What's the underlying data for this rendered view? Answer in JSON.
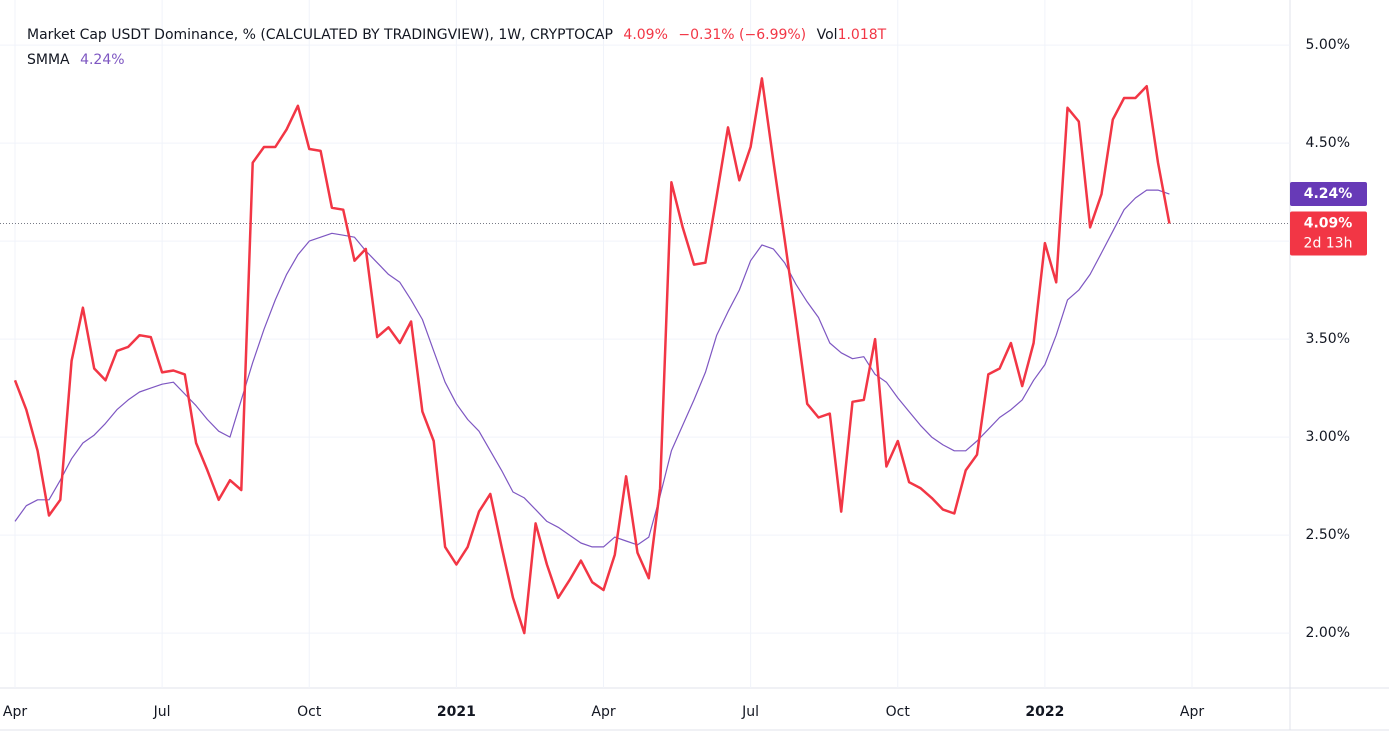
{
  "chart_data": {
    "type": "line",
    "title": "Market Cap USDT Dominance, % (CALCULATED BY TRADINGVIEW), 1W, CRYPTOCAP",
    "change": "−0.31% (−6.99%)",
    "volume_label": "Vol",
    "volume": "1.018T",
    "categories": [
      "Apr",
      null,
      null,
      null,
      null,
      null,
      null,
      null,
      null,
      null,
      null,
      null,
      null,
      "Jul",
      null,
      null,
      null,
      null,
      null,
      null,
      null,
      null,
      null,
      null,
      null,
      null,
      "Oct",
      null,
      null,
      null,
      null,
      null,
      null,
      null,
      null,
      null,
      null,
      null,
      null,
      "2021",
      null,
      null,
      null,
      null,
      null,
      null,
      null,
      null,
      null,
      null,
      null,
      null,
      "Apr",
      null,
      null,
      null,
      null,
      null,
      null,
      null,
      null,
      null,
      null,
      null,
      null,
      "Jul",
      null,
      null,
      null,
      null,
      null,
      null,
      null,
      null,
      null,
      null,
      null,
      null,
      "Oct",
      null,
      null,
      null,
      null,
      null,
      null,
      null,
      null,
      null,
      null,
      null,
      null,
      "2022",
      null,
      null,
      null,
      null,
      null,
      null,
      null,
      null,
      null,
      null,
      null,
      null,
      "Apr"
    ],
    "series": [
      {
        "color": "#f23645",
        "last_label": "4.09%",
        "countdown": "2d 13h",
        "values": [
          3.29,
          3.14,
          2.93,
          2.6,
          2.68,
          3.39,
          3.66,
          3.35,
          3.29,
          3.44,
          3.46,
          3.52,
          3.51,
          3.33,
          3.34,
          3.32,
          2.97,
          2.83,
          2.68,
          2.78,
          2.73,
          4.4,
          4.48,
          4.48,
          4.57,
          4.69,
          4.47,
          4.46,
          4.17,
          4.16,
          3.9,
          3.96,
          3.51,
          3.56,
          3.48,
          3.59,
          3.13,
          2.98,
          2.44,
          2.35,
          2.44,
          2.62,
          2.71,
          2.44,
          2.18,
          2.0,
          2.56,
          2.35,
          2.18,
          2.27,
          2.37,
          2.26,
          2.22,
          2.4,
          2.8,
          2.41,
          2.28,
          2.74,
          4.3,
          4.07,
          3.88,
          3.89,
          4.23,
          4.58,
          4.31,
          4.48,
          4.83,
          4.41,
          4.01,
          3.6,
          3.17,
          3.1,
          3.12,
          2.62,
          3.18,
          3.19,
          3.5,
          2.85,
          2.98,
          2.77,
          2.74,
          2.69,
          2.63,
          2.61,
          2.83,
          2.91,
          3.32,
          3.35,
          3.48,
          3.26,
          3.48,
          3.99,
          3.79,
          4.68,
          4.61,
          4.07,
          4.24,
          4.62,
          4.73,
          4.73,
          4.79,
          4.4,
          4.09,
          null,
          null
        ]
      },
      {
        "name": "SMMA",
        "color": "#7e57c2",
        "last_label": "4.24%",
        "values": [
          2.57,
          2.65,
          2.68,
          2.68,
          2.78,
          2.89,
          2.97,
          3.01,
          3.07,
          3.14,
          3.19,
          3.23,
          3.25,
          3.27,
          3.28,
          3.22,
          3.16,
          3.09,
          3.03,
          3.0,
          3.19,
          3.38,
          3.55,
          3.7,
          3.83,
          3.93,
          4.0,
          4.02,
          4.04,
          4.03,
          4.02,
          3.95,
          3.89,
          3.83,
          3.79,
          3.7,
          3.6,
          3.44,
          3.28,
          3.17,
          3.09,
          3.03,
          2.93,
          2.83,
          2.72,
          2.69,
          2.63,
          2.57,
          2.54,
          2.5,
          2.46,
          2.44,
          2.44,
          2.49,
          2.47,
          2.45,
          2.49,
          2.7,
          2.93,
          3.06,
          3.19,
          3.33,
          3.52,
          3.64,
          3.75,
          3.9,
          3.98,
          3.96,
          3.89,
          3.78,
          3.69,
          3.61,
          3.48,
          3.43,
          3.4,
          3.41,
          3.32,
          3.28,
          3.2,
          3.13,
          3.06,
          3.0,
          2.96,
          2.93,
          2.93,
          2.98,
          3.04,
          3.1,
          3.14,
          3.19,
          3.29,
          3.37,
          3.52,
          3.7,
          3.75,
          3.83,
          3.94,
          4.05,
          4.16,
          4.22,
          4.26,
          4.26,
          4.24,
          null,
          null
        ]
      }
    ],
    "ylim": [
      1.72,
      5.23
    ],
    "yticks": [
      {
        "value": 2,
        "label": "2.00%"
      },
      {
        "value": 2.5,
        "label": "2.50%"
      },
      {
        "value": 3,
        "label": "3.00%"
      },
      {
        "value": 3.5,
        "label": "3.50%"
      },
      {
        "value": 4,
        "label": "4.00%"
      },
      {
        "value": 4.5,
        "label": "4.50%"
      },
      {
        "value": 5,
        "label": "5.00%"
      }
    ],
    "grid": true
  }
}
